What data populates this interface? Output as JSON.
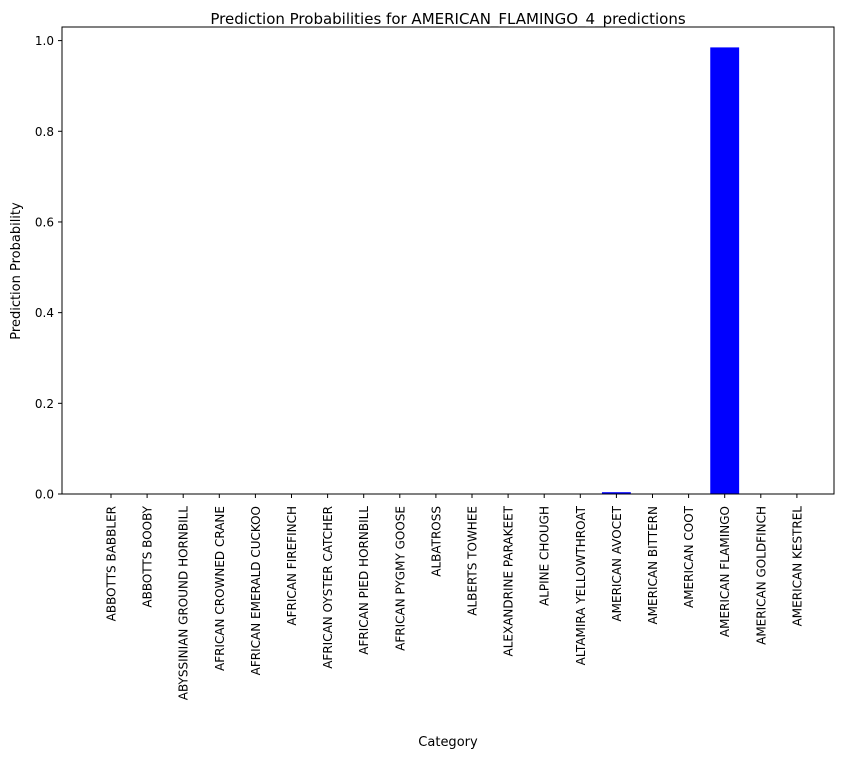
{
  "chart_data": {
    "type": "bar",
    "title": "Prediction Probabilities for AMERICAN_FLAMINGO_4_predictions",
    "xlabel": "Category",
    "ylabel": "Prediction Probability",
    "categories": [
      "ABBOTTS BABBLER",
      "ABBOTTS BOOBY",
      "ABYSSINIAN GROUND HORNBILL",
      "AFRICAN CROWNED CRANE",
      "AFRICAN EMERALD CUCKOO",
      "AFRICAN FIREFINCH",
      "AFRICAN OYSTER CATCHER",
      "AFRICAN PIED HORNBILL",
      "AFRICAN PYGMY GOOSE",
      "ALBATROSS",
      "ALBERTS TOWHEE",
      "ALEXANDRINE PARAKEET",
      "ALPINE CHOUGH",
      "ALTAMIRA YELLOWTHROAT",
      "AMERICAN AVOCET",
      "AMERICAN BITTERN",
      "AMERICAN COOT",
      "AMERICAN FLAMINGO",
      "AMERICAN GOLDFINCH",
      "AMERICAN KESTREL"
    ],
    "values": [
      0.001,
      0.001,
      0.001,
      0.001,
      0.001,
      0.001,
      0.001,
      0.0,
      0.0,
      0.001,
      0.001,
      0.001,
      0.001,
      0.001,
      0.004,
      0.001,
      0.001,
      0.985,
      0.001,
      0.0
    ],
    "ylim": [
      0,
      1.03
    ],
    "yticks": [
      0.0,
      0.2,
      0.4,
      0.6,
      0.8,
      1.0
    ],
    "ytick_labels": [
      "0.0",
      "0.2",
      "0.4",
      "0.6",
      "0.8",
      "1.0"
    ],
    "bar_color": "#0000ff",
    "grid": false
  }
}
